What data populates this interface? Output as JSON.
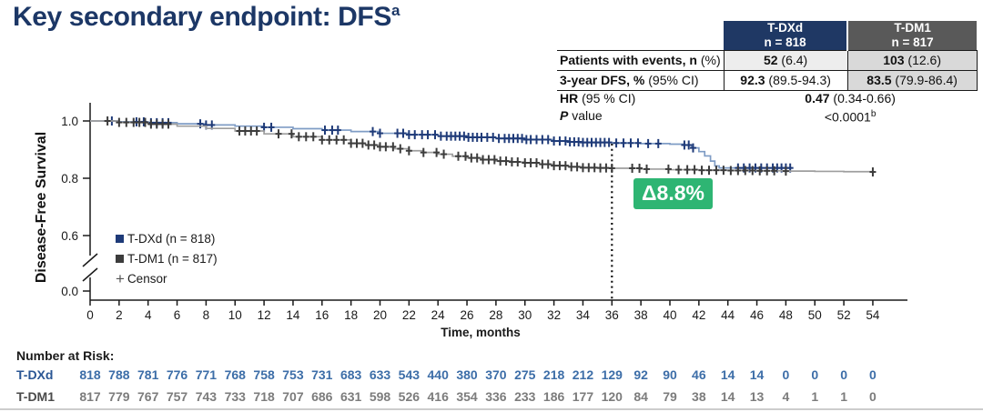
{
  "slide": {
    "title": "Key secondary endpoint: DFS",
    "title_sup": "a"
  },
  "summary_table": {
    "headers": [
      {
        "name": "T-DXd",
        "n": "n = 818"
      },
      {
        "name": "T-DM1",
        "n": "n = 817"
      }
    ],
    "rows": [
      {
        "label_bold": "Patients with events, n",
        "label_rest": " (%)",
        "tdxd_bold": "52",
        "tdxd_rest": " (6.4)",
        "tdm1_bold": "103",
        "tdm1_rest": " (12.6)"
      },
      {
        "label_bold": "3-year DFS, %",
        "label_rest": " (95% CI)",
        "tdxd_bold": "92.3",
        "tdxd_rest": " (89.5-94.3)",
        "tdm1_bold": "83.5",
        "tdm1_rest": " (79.9-86.4)"
      }
    ],
    "hr_row": {
      "label_bold": "HR",
      "label_rest": " (95 % CI)",
      "value_bold": "0.47",
      "value_rest": " (0.34-0.66)"
    },
    "p_row": {
      "label_italic": "P",
      "label_rest": " value",
      "value": "<0.0001",
      "value_sup": "b"
    }
  },
  "annotation": {
    "delta_label": "Δ8.8%",
    "color": "#2eb573"
  },
  "legend": {
    "items": [
      {
        "label": "T-DXd (n = 818)"
      },
      {
        "label": "T-DM1 (n = 817)"
      },
      {
        "label": "Censor",
        "marker": "+"
      }
    ]
  },
  "chart_data": {
    "type": "line",
    "subtype": "kaplan-meier",
    "title": "",
    "xlabel": "Time, months",
    "ylabel": "Disease-Free Survival",
    "xticks": {
      "min": 0,
      "max": 54,
      "step": 2
    },
    "yticks": [
      1.0,
      0.8,
      0.6,
      0.0
    ],
    "y_axis_break": true,
    "reference_line": {
      "x": 36,
      "style": "dotted",
      "color": "#111111"
    },
    "series": [
      {
        "id": "t-dxd",
        "name": "T-DXd (n = 818)",
        "line_color": "#7f9cc5",
        "censor_color": "#1e3a78",
        "steps": [
          [
            0,
            1.0
          ],
          [
            2,
            0.997
          ],
          [
            4,
            0.994
          ],
          [
            6,
            0.99
          ],
          [
            8,
            0.986
          ],
          [
            10,
            0.982
          ],
          [
            12,
            0.978
          ],
          [
            14,
            0.973
          ],
          [
            16,
            0.968
          ],
          [
            18,
            0.963
          ],
          [
            20,
            0.957
          ],
          [
            22,
            0.952
          ],
          [
            24,
            0.947
          ],
          [
            26,
            0.943
          ],
          [
            28,
            0.939
          ],
          [
            30,
            0.935
          ],
          [
            32,
            0.93
          ],
          [
            33,
            0.927
          ],
          [
            34,
            0.925
          ],
          [
            36,
            0.923
          ],
          [
            38,
            0.921
          ],
          [
            40,
            0.919
          ],
          [
            41,
            0.916
          ],
          [
            41.5,
            0.906
          ],
          [
            42,
            0.893
          ],
          [
            42.4,
            0.878
          ],
          [
            42.8,
            0.86
          ],
          [
            43.1,
            0.843
          ],
          [
            43.4,
            0.836
          ],
          [
            48.4,
            0.836
          ]
        ],
        "censors": [
          1.5,
          3.2,
          3.7,
          4.2,
          4.6,
          5.0,
          5.4,
          7.6,
          8.0,
          8.4,
          12.0,
          12.5,
          16.2,
          16.7,
          17.1,
          19.5,
          20.0,
          21.2,
          21.6,
          22.0,
          22.4,
          22.9,
          23.3,
          23.8,
          24.2,
          24.6,
          24.9,
          25.2,
          25.5,
          25.8,
          26.1,
          26.4,
          26.7,
          27.0,
          27.4,
          27.8,
          28.2,
          28.6,
          28.9,
          29.2,
          29.5,
          29.8,
          30.1,
          30.4,
          30.8,
          31.2,
          31.6,
          32.0,
          32.4,
          32.8,
          33.1,
          33.4,
          33.7,
          34.0,
          34.3,
          34.6,
          34.9,
          35.2,
          35.5,
          35.8,
          36.3,
          36.8,
          37.3,
          37.8,
          38.5,
          39.2,
          41.0,
          41.3,
          41.6,
          44.7,
          45.1,
          45.5,
          45.9,
          46.3,
          46.7,
          47.1,
          47.4,
          47.7,
          48.0,
          48.3
        ]
      },
      {
        "id": "t-dm1",
        "name": "T-DM1 (n = 817)",
        "line_color": "#9e9e9e",
        "censor_color": "#3c3c3c",
        "steps": [
          [
            0,
            1.0
          ],
          [
            2,
            0.995
          ],
          [
            4,
            0.989
          ],
          [
            6,
            0.982
          ],
          [
            8,
            0.974
          ],
          [
            10,
            0.965
          ],
          [
            12,
            0.955
          ],
          [
            14,
            0.945
          ],
          [
            16,
            0.934
          ],
          [
            18,
            0.922
          ],
          [
            19,
            0.916
          ],
          [
            20,
            0.91
          ],
          [
            21,
            0.903
          ],
          [
            22,
            0.896
          ],
          [
            23,
            0.89
          ],
          [
            24,
            0.884
          ],
          [
            25,
            0.877
          ],
          [
            26,
            0.871
          ],
          [
            27,
            0.865
          ],
          [
            28,
            0.86
          ],
          [
            29,
            0.857
          ],
          [
            30,
            0.854
          ],
          [
            31,
            0.849
          ],
          [
            32,
            0.844
          ],
          [
            33,
            0.84
          ],
          [
            34,
            0.837
          ],
          [
            35,
            0.836
          ],
          [
            36,
            0.835
          ],
          [
            38,
            0.832
          ],
          [
            40,
            0.83
          ],
          [
            42,
            0.828
          ],
          [
            44,
            0.827
          ],
          [
            46,
            0.826
          ],
          [
            48,
            0.825
          ],
          [
            50,
            0.824
          ],
          [
            52,
            0.823
          ],
          [
            54,
            0.822
          ]
        ],
        "censors": [
          1.2,
          2.0,
          2.5,
          3.0,
          3.4,
          3.8,
          4.2,
          4.6,
          5.0,
          5.4,
          10.3,
          10.7,
          11.1,
          11.5,
          13.0,
          13.9,
          14.4,
          14.9,
          15.4,
          16.0,
          16.5,
          17.0,
          17.5,
          18.0,
          18.4,
          18.8,
          19.2,
          19.6,
          20.0,
          20.4,
          20.9,
          21.4,
          22.0,
          23.0,
          23.9,
          24.4,
          25.4,
          25.9,
          26.3,
          26.7,
          27.1,
          27.5,
          27.9,
          28.3,
          28.7,
          29.1,
          29.5,
          30.0,
          30.4,
          30.8,
          31.2,
          31.6,
          32.0,
          32.4,
          32.8,
          33.2,
          33.6,
          34.0,
          34.4,
          34.8,
          35.2,
          35.6,
          36.0,
          37.4,
          37.9,
          38.4,
          39.9,
          40.6,
          41.2,
          41.7,
          42.2,
          42.7,
          43.2,
          43.7,
          44.2,
          44.7,
          45.2,
          45.7,
          46.2,
          46.7,
          47.2,
          48.0,
          54.0
        ]
      }
    ],
    "at_risk": {
      "heading": "Number at Risk:",
      "rows": [
        {
          "label": "T-DXd",
          "label_color": "#2a5694",
          "value_color": "#3d6ea8",
          "values": [
            818,
            788,
            781,
            776,
            771,
            768,
            758,
            753,
            731,
            683,
            633,
            543,
            440,
            380,
            370,
            275,
            218,
            212,
            129,
            92,
            90,
            46,
            14,
            14,
            0,
            0,
            0,
            0
          ]
        },
        {
          "label": "T-DM1",
          "label_color": "#4a4a4a",
          "value_color": "#7c7c7c",
          "values": [
            817,
            779,
            767,
            757,
            743,
            733,
            718,
            707,
            686,
            631,
            598,
            526,
            416,
            354,
            336,
            233,
            186,
            177,
            120,
            84,
            79,
            38,
            14,
            13,
            4,
            1,
            1,
            0
          ]
        }
      ]
    }
  }
}
